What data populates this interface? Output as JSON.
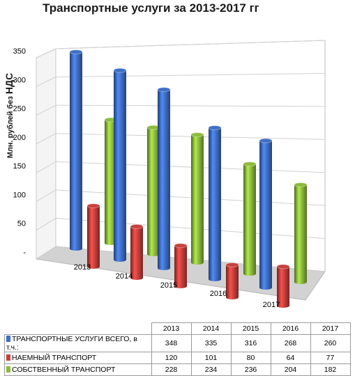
{
  "chart_data": {
    "type": "bar",
    "title": "Транспортные  услуги за 2013-2017 гг",
    "ylabel": "Млн. рублей без НДС",
    "ylabel_small": "Млн. рублей без",
    "ylabel_big": "НДС",
    "ylim": [
      0,
      350
    ],
    "yticks": [
      "350",
      "300",
      "250",
      "200",
      "150",
      "100",
      "50",
      "-"
    ],
    "categories": [
      "2013",
      "2014",
      "2015",
      "2016",
      "2017"
    ],
    "series": [
      {
        "name": "ТРАНСПОРТНЫЕ УСЛУГИ ВСЕГО, в т.ч.:",
        "values": [
          348,
          335,
          316,
          268,
          260
        ],
        "color": "#3f6fc6"
      },
      {
        "name": "НАЕМНЫЙ ТРАНСПОРТ",
        "values": [
          120,
          101,
          80,
          64,
          77
        ],
        "color": "#c8403c"
      },
      {
        "name": "СОБСТВЕННЫЙ ТРАНСПОРТ",
        "values": [
          228,
          234,
          236,
          204,
          182
        ],
        "color": "#8dbb3c"
      }
    ],
    "table_values": [
      [
        "348",
        "335",
        "316",
        "268",
        "260"
      ],
      [
        "120",
        "101",
        "80",
        "64",
        "77"
      ],
      [
        "228",
        "234",
        "236",
        "204",
        "182"
      ]
    ],
    "grid": true,
    "legend": "table-below"
  }
}
